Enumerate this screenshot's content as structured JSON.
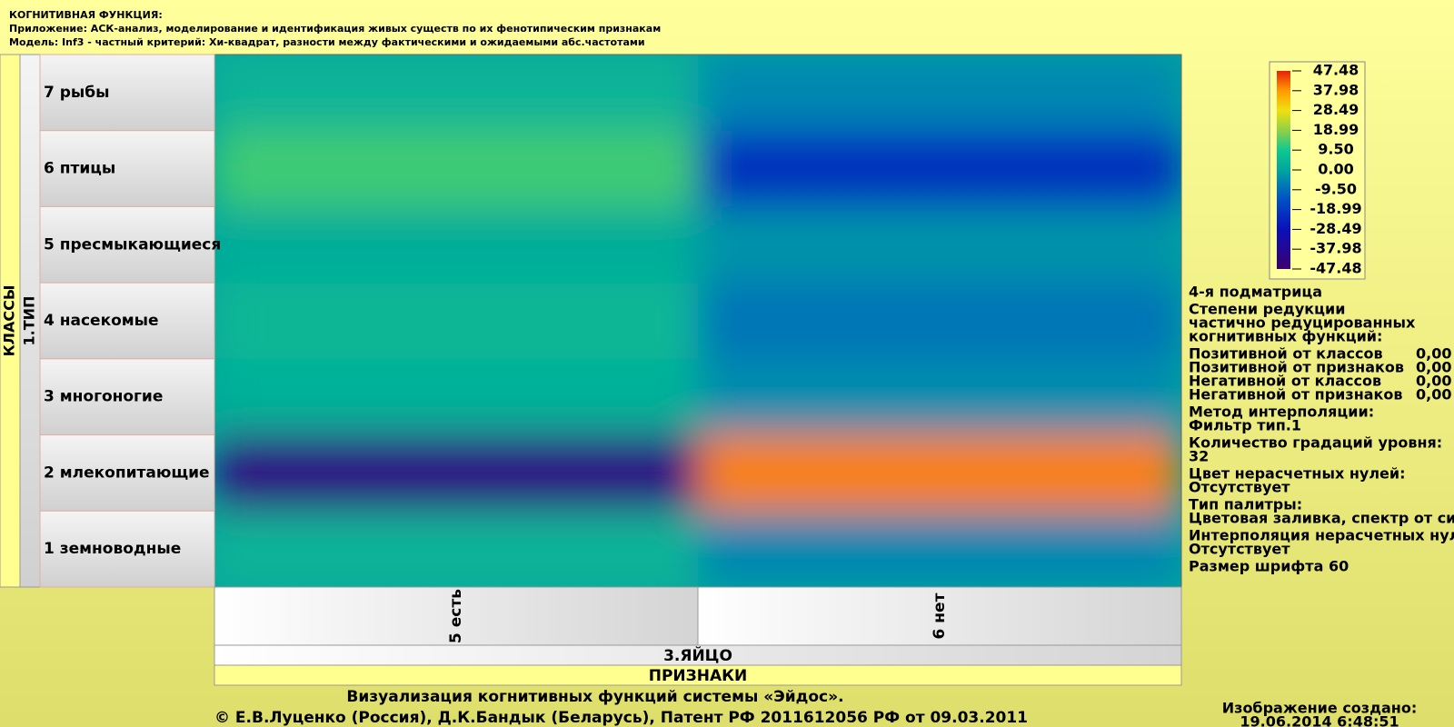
{
  "chart_data": {
    "type": "heatmap",
    "header": [
      "КОГНИТИВНАЯ ФУНКЦИЯ:",
      "Приложение: АСК-анализ, моделирование и идентификация живых существ по их фенотипическим признакам",
      "Модель: Inf3 - частный критерий: Хи-квадрат, разности между фактическими и ожидаемыми абс.частотами"
    ],
    "row_axis_title": "КЛАССЫ",
    "row_group": "1.ТИП",
    "rows": [
      "7 рыбы",
      "6 птицы",
      "5 пресмыкающиеся",
      "4 насекомые",
      "3 многоногие",
      "2 млекопитающие",
      "1 земноводные"
    ],
    "col_group": "3.ЯЙЦО",
    "col_axis_title": "ПРИЗНАКИ",
    "columns": [
      "5 есть",
      "6 нет"
    ],
    "values": [
      [
        4,
        -5
      ],
      [
        13,
        -22
      ],
      [
        2,
        -3
      ],
      [
        5,
        -8
      ],
      [
        3,
        -4
      ],
      [
        -42,
        40
      ],
      [
        4,
        -5
      ]
    ],
    "zlim": [
      -47.48,
      47.48
    ],
    "zticks": [
      47.48,
      37.98,
      28.49,
      18.99,
      {
        "value": 9.5,
        "label": "9.50"
      },
      {
        "value": 0,
        "label": "0.00"
      },
      {
        "value": -9.5,
        "label": "-9.50"
      },
      -18.99,
      -28.49,
      -37.98,
      -47.48
    ],
    "info": [
      [
        "4-я подматрица"
      ],
      [
        "Степени редукции",
        "частично редуцированных",
        "когнитивных функций:"
      ],
      [
        {
          "label": "Позитивной от классов",
          "value": "0,00"
        },
        {
          "label": "Позитивной от признаков",
          "value": "0,00"
        },
        {
          "label": "Негативной от классов",
          "value": "0,00"
        },
        {
          "label": "Негативной от признаков",
          "value": "0,00"
        }
      ],
      [
        "Метод интерполяции:",
        "Фильтр тип.1"
      ],
      [
        "Количество градаций уровня:",
        "32"
      ],
      [
        "Цвет нерасчетных нулей:",
        "Отсутствует"
      ],
      [
        "Тип палитры:",
        "Цветовая заливка, спектр от си"
      ],
      [
        "Интерполяция нерасчетных нул",
        "Отсутствует"
      ],
      [
        "Размер шрифта 60"
      ]
    ],
    "footer": [
      "Визуализация когнитивных функций системы «Эйдос».",
      "© Е.В.Луценко (Россия), Д.К.Бандык (Беларусь), Патент РФ  2011612056 РФ от 09.03.2011"
    ],
    "created_label": "Изображение создано:",
    "created": "19.06.2014   6:48:51"
  }
}
